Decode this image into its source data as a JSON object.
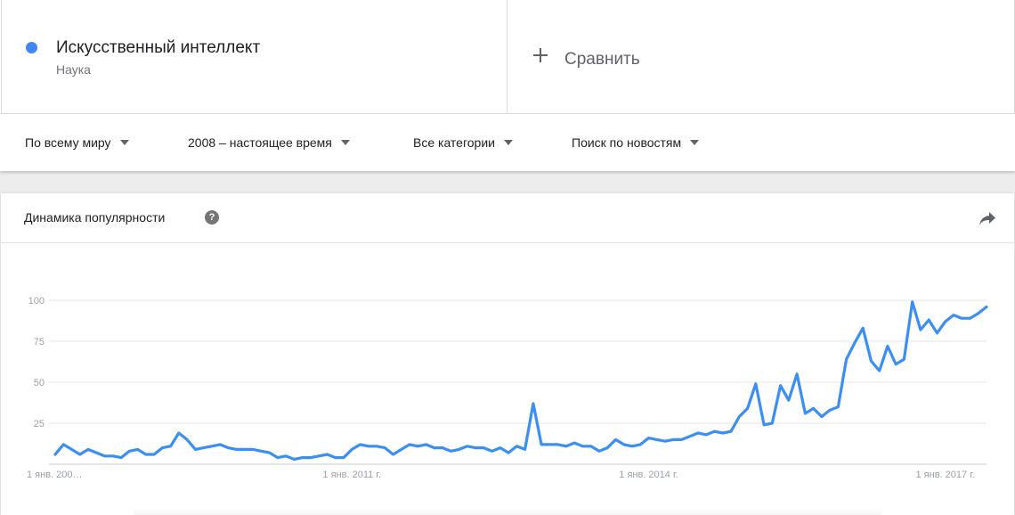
{
  "term": {
    "title": "Искусственный интеллект",
    "subtitle": "Наука",
    "color": "#4285f4"
  },
  "compare": {
    "label": "Сравнить"
  },
  "filters": [
    {
      "label": "По всему миру"
    },
    {
      "label": "2008 – настоящее время"
    },
    {
      "label": "Все категории"
    },
    {
      "label": "Поиск по новостям"
    }
  ],
  "card": {
    "title": "Динамика популярности",
    "help_icon": "help-icon",
    "share_icon": "share-icon"
  },
  "chart_data": {
    "type": "line",
    "ylim": [
      0,
      100
    ],
    "y_ticks": [
      25,
      50,
      75,
      100
    ],
    "x_tick_labels": [
      "1 янв. 200…",
      "1 янв. 2011 г.",
      "1 янв. 2014 г.",
      "1 янв. 2017 г."
    ],
    "x_tick_dates": [
      "2008-01",
      "2011-01",
      "2014-01",
      "2017-01"
    ],
    "x_range": [
      "2008-01",
      "2017-06"
    ],
    "grid": true,
    "legend": "none",
    "series": [
      {
        "color": "#4285f4",
        "x": [
          "2008-01",
          "2008-02",
          "2008-03",
          "2008-04",
          "2008-05",
          "2008-06",
          "2008-07",
          "2008-08",
          "2008-09",
          "2008-10",
          "2008-11",
          "2008-12",
          "2009-01",
          "2009-02",
          "2009-03",
          "2009-04",
          "2009-05",
          "2009-06",
          "2009-07",
          "2009-08",
          "2009-09",
          "2009-10",
          "2009-11",
          "2009-12",
          "2010-01",
          "2010-02",
          "2010-03",
          "2010-04",
          "2010-05",
          "2010-06",
          "2010-07",
          "2010-08",
          "2010-09",
          "2010-10",
          "2010-11",
          "2010-12",
          "2011-01",
          "2011-02",
          "2011-03",
          "2011-04",
          "2011-05",
          "2011-06",
          "2011-07",
          "2011-08",
          "2011-09",
          "2011-10",
          "2011-11",
          "2011-12",
          "2012-01",
          "2012-02",
          "2012-03",
          "2012-04",
          "2012-05",
          "2012-06",
          "2012-07",
          "2012-08",
          "2012-09",
          "2012-10",
          "2012-11",
          "2012-12",
          "2013-01",
          "2013-02",
          "2013-03",
          "2013-04",
          "2013-05",
          "2013-06",
          "2013-07",
          "2013-08",
          "2013-09",
          "2013-10",
          "2013-11",
          "2013-12",
          "2014-01",
          "2014-02",
          "2014-03",
          "2014-04",
          "2014-05",
          "2014-06",
          "2014-07",
          "2014-08",
          "2014-09",
          "2014-10",
          "2014-11",
          "2014-12",
          "2015-01",
          "2015-02",
          "2015-03",
          "2015-04",
          "2015-05",
          "2015-06",
          "2015-07",
          "2015-08",
          "2015-09",
          "2015-10",
          "2015-11",
          "2015-12",
          "2016-01",
          "2016-02",
          "2016-03",
          "2016-04",
          "2016-05",
          "2016-06",
          "2016-07",
          "2016-08",
          "2016-09",
          "2016-10",
          "2016-11",
          "2016-12",
          "2017-01",
          "2017-02",
          "2017-03",
          "2017-04",
          "2017-05",
          "2017-06"
        ],
        "values": [
          6,
          12,
          9,
          6,
          9,
          7,
          5,
          5,
          4,
          8,
          9,
          6,
          6,
          10,
          11,
          19,
          15,
          9,
          10,
          11,
          12,
          10,
          9,
          9,
          9,
          8,
          7,
          4,
          5,
          3,
          4,
          4,
          5,
          6,
          4,
          4,
          9,
          12,
          11,
          11,
          10,
          6,
          9,
          12,
          11,
          12,
          10,
          10,
          8,
          9,
          11,
          10,
          10,
          8,
          10,
          7,
          11,
          9,
          37,
          12,
          12,
          12,
          11,
          13,
          11,
          11,
          8,
          10,
          15,
          12,
          11,
          12,
          16,
          15,
          14,
          15,
          15,
          17,
          19,
          18,
          20,
          19,
          20,
          29,
          34,
          49,
          24,
          25,
          48,
          39,
          55,
          31,
          34,
          29,
          33,
          35,
          64,
          74,
          83,
          63,
          57,
          72,
          61,
          64,
          99,
          82,
          88,
          80,
          87,
          91,
          89,
          89,
          92,
          96
        ]
      }
    ]
  }
}
